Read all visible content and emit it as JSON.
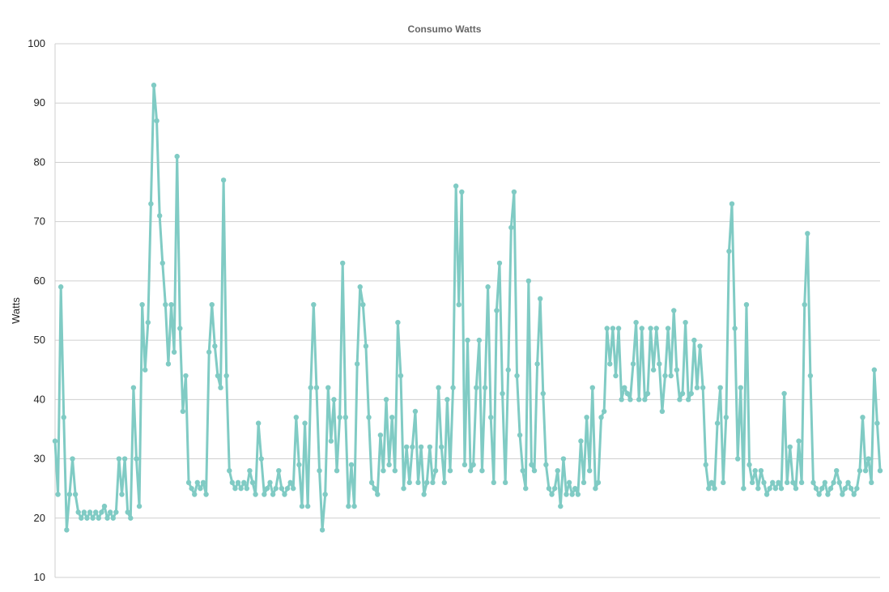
{
  "chart_data": {
    "type": "line",
    "title": "Consumo Watts",
    "xlabel": "",
    "ylabel": "Watts",
    "ylim": [
      10,
      100
    ],
    "yticks": [
      10,
      20,
      30,
      40,
      50,
      60,
      70,
      80,
      90,
      100
    ],
    "grid": true,
    "legend": "none",
    "series": [
      {
        "color": "#80cbc4",
        "values": [
          33,
          24,
          59,
          37,
          18,
          24,
          30,
          24,
          21,
          20,
          21,
          20,
          21,
          20,
          21,
          20,
          21,
          22,
          20,
          21,
          20,
          21,
          30,
          24,
          30,
          21,
          20,
          42,
          30,
          22,
          56,
          45,
          53,
          73,
          93,
          87,
          71,
          63,
          56,
          46,
          56,
          48,
          81,
          52,
          38,
          44,
          26,
          25,
          24,
          26,
          25,
          26,
          24,
          48,
          56,
          49,
          44,
          42,
          77,
          44,
          28,
          26,
          25,
          26,
          25,
          26,
          25,
          28,
          26,
          24,
          36,
          30,
          24,
          25,
          26,
          24,
          25,
          28,
          25,
          24,
          25,
          26,
          25,
          37,
          29,
          22,
          36,
          22,
          42,
          56,
          42,
          28,
          18,
          24,
          42,
          33,
          40,
          28,
          37,
          63,
          37,
          22,
          29,
          22,
          46,
          59,
          56,
          49,
          37,
          26,
          25,
          24,
          34,
          28,
          40,
          29,
          37,
          28,
          53,
          44,
          25,
          32,
          26,
          32,
          38,
          26,
          32,
          24,
          26,
          32,
          26,
          28,
          42,
          32,
          26,
          40,
          28,
          42,
          76,
          56,
          75,
          29,
          50,
          28,
          29,
          42,
          50,
          28,
          42,
          59,
          37,
          26,
          55,
          63,
          41,
          26,
          45,
          69,
          75,
          44,
          34,
          28,
          25,
          60,
          29,
          28,
          46,
          57,
          41,
          29,
          25,
          24,
          25,
          28,
          22,
          30,
          24,
          26,
          24,
          25,
          24,
          33,
          26,
          37,
          28,
          42,
          25,
          26,
          37,
          38,
          52,
          46,
          52,
          44,
          52,
          40,
          42,
          41,
          40,
          46,
          53,
          40,
          52,
          40,
          41,
          52,
          45,
          52,
          46,
          38,
          44,
          52,
          44,
          55,
          45,
          40,
          41,
          53,
          40,
          41,
          50,
          42,
          49,
          42,
          29,
          25,
          26,
          25,
          36,
          42,
          26,
          37,
          65,
          73,
          52,
          30,
          42,
          25,
          56,
          29,
          26,
          28,
          25,
          28,
          26,
          24,
          25,
          26,
          25,
          26,
          25,
          41,
          26,
          32,
          26,
          25,
          33,
          26,
          56,
          68,
          44,
          26,
          25,
          24,
          25,
          26,
          24,
          25,
          26,
          28,
          26,
          24,
          25,
          26,
          25,
          24,
          25,
          28,
          37,
          28,
          30,
          26,
          45,
          36,
          28
        ]
      }
    ]
  }
}
